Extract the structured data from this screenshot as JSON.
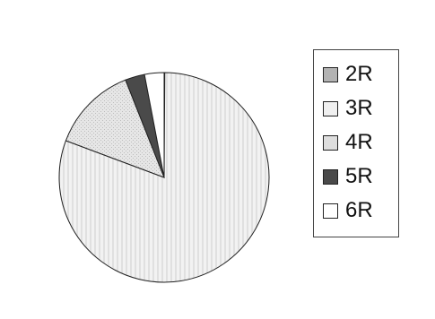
{
  "chart_data": {
    "type": "pie",
    "categories": [
      "2R",
      "3R",
      "4R",
      "5R",
      "6R"
    ],
    "values": [
      0.1,
      80.6,
      13.3,
      3.0,
      3.0
    ],
    "colors": [
      "#b3b3b3",
      "#ededed",
      "#d9d9d9",
      "#4a4a4a",
      "#ffffff"
    ],
    "title": "",
    "legend_position": "right",
    "start_angle_deg": 0,
    "direction": "clockwise"
  }
}
